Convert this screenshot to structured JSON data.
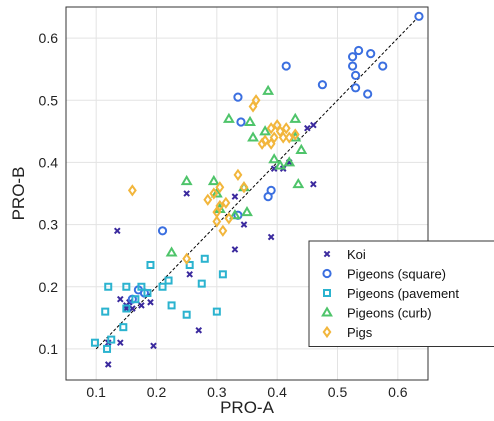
{
  "chart_data": {
    "type": "scatter",
    "title": "",
    "xlabel": "PRO-A",
    "ylabel": "PRO-B",
    "xlim": [
      0.05,
      0.65
    ],
    "ylim": [
      0.05,
      0.65
    ],
    "xticks": [
      0.1,
      0.2,
      0.3,
      0.4,
      0.5,
      0.6
    ],
    "yticks": [
      0.1,
      0.2,
      0.3,
      0.4,
      0.5,
      0.6
    ],
    "grid": true,
    "legend_position": "bottom-right",
    "reference_line": {
      "style": "dashed",
      "from": [
        0.1,
        0.1
      ],
      "to": [
        0.63,
        0.63
      ],
      "color": "#000000"
    },
    "series": [
      {
        "name": "Koi",
        "marker": "x",
        "color": "#3b2a9e",
        "points": [
          [
            0.12,
            0.075
          ],
          [
            0.12,
            0.11
          ],
          [
            0.135,
            0.29
          ],
          [
            0.14,
            0.11
          ],
          [
            0.14,
            0.18
          ],
          [
            0.15,
            0.165
          ],
          [
            0.15,
            0.17
          ],
          [
            0.155,
            0.175
          ],
          [
            0.16,
            0.165
          ],
          [
            0.175,
            0.17
          ],
          [
            0.19,
            0.175
          ],
          [
            0.195,
            0.105
          ],
          [
            0.25,
            0.35
          ],
          [
            0.255,
            0.22
          ],
          [
            0.27,
            0.13
          ],
          [
            0.33,
            0.345
          ],
          [
            0.33,
            0.26
          ],
          [
            0.345,
            0.3
          ],
          [
            0.39,
            0.28
          ],
          [
            0.395,
            0.39
          ],
          [
            0.41,
            0.39
          ],
          [
            0.42,
            0.4
          ],
          [
            0.45,
            0.455
          ],
          [
            0.46,
            0.365
          ],
          [
            0.46,
            0.46
          ]
        ]
      },
      {
        "name": "Pigeons (square)",
        "marker": "circle",
        "color": "#3b6fe0",
        "points": [
          [
            0.16,
            0.18
          ],
          [
            0.17,
            0.195
          ],
          [
            0.18,
            0.19
          ],
          [
            0.21,
            0.29
          ],
          [
            0.335,
            0.315
          ],
          [
            0.335,
            0.505
          ],
          [
            0.34,
            0.465
          ],
          [
            0.385,
            0.345
          ],
          [
            0.39,
            0.355
          ],
          [
            0.415,
            0.555
          ],
          [
            0.475,
            0.525
          ],
          [
            0.525,
            0.555
          ],
          [
            0.525,
            0.57
          ],
          [
            0.53,
            0.54
          ],
          [
            0.53,
            0.52
          ],
          [
            0.535,
            0.58
          ],
          [
            0.55,
            0.51
          ],
          [
            0.555,
            0.575
          ],
          [
            0.575,
            0.555
          ],
          [
            0.635,
            0.635
          ]
        ]
      },
      {
        "name": "Pigeons (pavement",
        "marker": "square",
        "color": "#2bb3cf",
        "points": [
          [
            0.098,
            0.11
          ],
          [
            0.115,
            0.16
          ],
          [
            0.118,
            0.1
          ],
          [
            0.12,
            0.2
          ],
          [
            0.125,
            0.115
          ],
          [
            0.145,
            0.135
          ],
          [
            0.15,
            0.165
          ],
          [
            0.15,
            0.2
          ],
          [
            0.165,
            0.18
          ],
          [
            0.175,
            0.2
          ],
          [
            0.185,
            0.19
          ],
          [
            0.19,
            0.235
          ],
          [
            0.21,
            0.2
          ],
          [
            0.22,
            0.21
          ],
          [
            0.225,
            0.17
          ],
          [
            0.25,
            0.155
          ],
          [
            0.255,
            0.235
          ],
          [
            0.275,
            0.205
          ],
          [
            0.28,
            0.245
          ],
          [
            0.3,
            0.16
          ],
          [
            0.31,
            0.22
          ]
        ]
      },
      {
        "name": "Pigeons (curb)",
        "marker": "triangle",
        "color": "#4ec46a",
        "points": [
          [
            0.225,
            0.255
          ],
          [
            0.25,
            0.37
          ],
          [
            0.295,
            0.37
          ],
          [
            0.3,
            0.35
          ],
          [
            0.305,
            0.325
          ],
          [
            0.32,
            0.47
          ],
          [
            0.33,
            0.315
          ],
          [
            0.345,
            0.36
          ],
          [
            0.35,
            0.32
          ],
          [
            0.355,
            0.465
          ],
          [
            0.36,
            0.44
          ],
          [
            0.38,
            0.45
          ],
          [
            0.385,
            0.515
          ],
          [
            0.395,
            0.405
          ],
          [
            0.405,
            0.395
          ],
          [
            0.42,
            0.4
          ],
          [
            0.43,
            0.47
          ],
          [
            0.43,
            0.44
          ],
          [
            0.435,
            0.365
          ],
          [
            0.44,
            0.42
          ]
        ]
      },
      {
        "name": "Pigs",
        "marker": "diamond",
        "color": "#f2b63c",
        "points": [
          [
            0.16,
            0.355
          ],
          [
            0.25,
            0.245
          ],
          [
            0.285,
            0.34
          ],
          [
            0.295,
            0.35
          ],
          [
            0.3,
            0.305
          ],
          [
            0.3,
            0.32
          ],
          [
            0.305,
            0.33
          ],
          [
            0.305,
            0.36
          ],
          [
            0.31,
            0.29
          ],
          [
            0.315,
            0.335
          ],
          [
            0.32,
            0.31
          ],
          [
            0.335,
            0.38
          ],
          [
            0.345,
            0.36
          ],
          [
            0.36,
            0.49
          ],
          [
            0.365,
            0.5
          ],
          [
            0.375,
            0.43
          ],
          [
            0.38,
            0.435
          ],
          [
            0.39,
            0.455
          ],
          [
            0.39,
            0.43
          ],
          [
            0.395,
            0.44
          ],
          [
            0.4,
            0.46
          ],
          [
            0.405,
            0.45
          ],
          [
            0.41,
            0.44
          ],
          [
            0.415,
            0.455
          ],
          [
            0.42,
            0.44
          ],
          [
            0.43,
            0.445
          ]
        ]
      }
    ]
  }
}
